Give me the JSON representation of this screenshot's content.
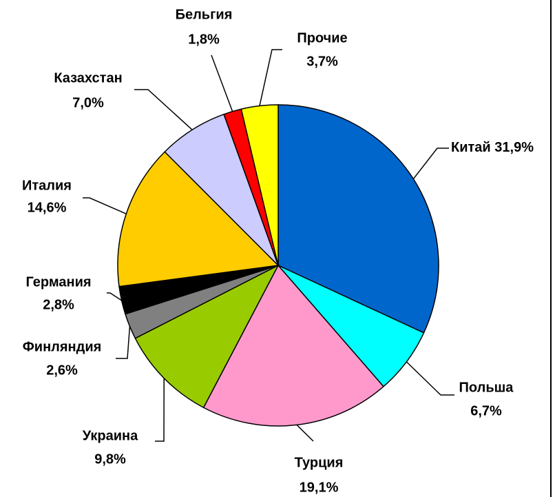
{
  "chart_data": {
    "type": "pie",
    "categories": [
      "Китай",
      "Польша",
      "Турция",
      "Украина",
      "Финляндия",
      "Германия",
      "Италия",
      "Казахстан",
      "Бельгия",
      "Прочие"
    ],
    "values": [
      31.9,
      6.7,
      19.1,
      9.8,
      2.6,
      2.8,
      14.6,
      7.0,
      1.8,
      3.7
    ],
    "value_labels": [
      "31,9%",
      "6,7%",
      "19,1%",
      "9,8%",
      "2,6%",
      "2,8%",
      "14,6%",
      "7,0%",
      "1,8%",
      "3,7%"
    ],
    "colors": [
      "#0066cc",
      "#00ffff",
      "#ff99cc",
      "#99cc00",
      "#808080",
      "#000000",
      "#ffcc00",
      "#ccccff",
      "#ff0000",
      "#ffff00"
    ]
  }
}
